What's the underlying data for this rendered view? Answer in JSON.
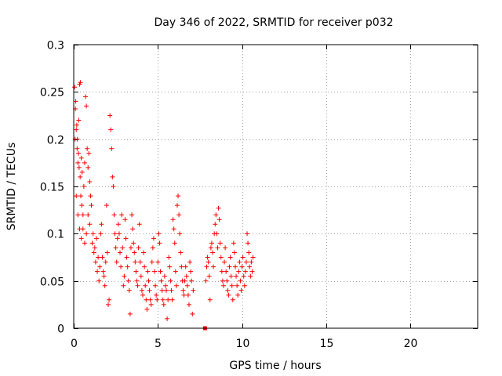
{
  "chart_data": {
    "type": "scatter",
    "title": "Day 346 of 2022, SRMTID for receiver p032",
    "xlabel": "GPS time / hours",
    "ylabel": "SRMTID / TECUs",
    "xlim": [
      0,
      24
    ],
    "ylim": [
      0,
      0.3
    ],
    "xticks": [
      0,
      5,
      10,
      15,
      20
    ],
    "xtick_labels": [
      "0",
      "5",
      "10",
      "15",
      "20"
    ],
    "yticks": [
      0,
      0.05,
      0.1,
      0.15,
      0.2,
      0.25,
      0.3
    ],
    "ytick_labels": [
      "0",
      "0.05",
      "0.1",
      "0.15",
      "0.2",
      "0.25",
      "0.3"
    ],
    "grid": true,
    "marker": "plus",
    "color": "#ff0000",
    "series": [
      {
        "name": "SRMTID",
        "points": [
          [
            0.05,
            0.255
          ],
          [
            0.1,
            0.232
          ],
          [
            0.15,
            0.21
          ],
          [
            0.2,
            0.19
          ],
          [
            0.25,
            0.175
          ],
          [
            0.3,
            0.22
          ],
          [
            0.35,
            0.258
          ],
          [
            0.4,
            0.26
          ],
          [
            0.45,
            0.18
          ],
          [
            0.5,
            0.165
          ],
          [
            0.08,
            0.2
          ],
          [
            0.12,
            0.24
          ],
          [
            0.18,
            0.215
          ],
          [
            0.22,
            0.2
          ],
          [
            0.28,
            0.185
          ],
          [
            0.32,
            0.17
          ],
          [
            0.38,
            0.16
          ],
          [
            0.42,
            0.14
          ],
          [
            0.48,
            0.13
          ],
          [
            0.55,
            0.12
          ],
          [
            0.6,
            0.15
          ],
          [
            0.65,
            0.175
          ],
          [
            0.7,
            0.245
          ],
          [
            0.75,
            0.235
          ],
          [
            0.8,
            0.19
          ],
          [
            0.85,
            0.17
          ],
          [
            0.9,
            0.185
          ],
          [
            0.95,
            0.155
          ],
          [
            1.0,
            0.14
          ],
          [
            1.05,
            0.13
          ],
          [
            0.15,
            0.14
          ],
          [
            0.25,
            0.12
          ],
          [
            0.35,
            0.105
          ],
          [
            0.45,
            0.095
          ],
          [
            0.55,
            0.105
          ],
          [
            0.65,
            0.09
          ],
          [
            0.75,
            0.1
          ],
          [
            0.85,
            0.12
          ],
          [
            0.95,
            0.11
          ],
          [
            1.1,
            0.09
          ],
          [
            1.15,
            0.1
          ],
          [
            1.2,
            0.08
          ],
          [
            1.25,
            0.085
          ],
          [
            1.3,
            0.07
          ],
          [
            1.35,
            0.095
          ],
          [
            1.4,
            0.06
          ],
          [
            1.45,
            0.075
          ],
          [
            1.5,
            0.05
          ],
          [
            1.55,
            0.065
          ],
          [
            1.6,
            0.1
          ],
          [
            1.65,
            0.11
          ],
          [
            1.7,
            0.075
          ],
          [
            1.75,
            0.06
          ],
          [
            1.8,
            0.055
          ],
          [
            1.85,
            0.045
          ],
          [
            1.9,
            0.07
          ],
          [
            1.95,
            0.13
          ],
          [
            2.0,
            0.08
          ],
          [
            2.05,
            0.025
          ],
          [
            2.1,
            0.03
          ],
          [
            2.15,
            0.225
          ],
          [
            2.2,
            0.21
          ],
          [
            2.25,
            0.19
          ],
          [
            2.3,
            0.16
          ],
          [
            2.35,
            0.15
          ],
          [
            2.4,
            0.12
          ],
          [
            2.45,
            0.1
          ],
          [
            2.5,
            0.085
          ],
          [
            2.55,
            0.07
          ],
          [
            2.6,
            0.095
          ],
          [
            2.65,
            0.11
          ],
          [
            2.7,
            0.1
          ],
          [
            2.75,
            0.08
          ],
          [
            2.8,
            0.065
          ],
          [
            2.85,
            0.12
          ],
          [
            2.9,
            0.085
          ],
          [
            2.95,
            0.045
          ],
          [
            3.0,
            0.055
          ],
          [
            3.05,
            0.115
          ],
          [
            3.1,
            0.095
          ],
          [
            3.15,
            0.075
          ],
          [
            3.2,
            0.065
          ],
          [
            3.25,
            0.05
          ],
          [
            3.3,
            0.04
          ],
          [
            3.35,
            0.015
          ],
          [
            3.4,
            0.085
          ],
          [
            3.45,
            0.12
          ],
          [
            3.5,
            0.105
          ],
          [
            3.55,
            0.09
          ],
          [
            3.6,
            0.08
          ],
          [
            3.65,
            0.07
          ],
          [
            3.7,
            0.06
          ],
          [
            3.75,
            0.05
          ],
          [
            3.8,
            0.045
          ],
          [
            3.85,
            0.085
          ],
          [
            3.9,
            0.11
          ],
          [
            3.95,
            0.07
          ],
          [
            4.0,
            0.055
          ],
          [
            4.05,
            0.04
          ],
          [
            4.1,
            0.035
          ],
          [
            4.15,
            0.08
          ],
          [
            4.2,
            0.065
          ],
          [
            4.25,
            0.045
          ],
          [
            4.3,
            0.03
          ],
          [
            4.35,
            0.02
          ],
          [
            4.4,
            0.06
          ],
          [
            4.45,
            0.05
          ],
          [
            4.5,
            0.04
          ],
          [
            4.55,
            0.03
          ],
          [
            4.6,
            0.025
          ],
          [
            4.65,
            0.07
          ],
          [
            4.7,
            0.085
          ],
          [
            4.75,
            0.095
          ],
          [
            4.8,
            0.06
          ],
          [
            4.85,
            0.045
          ],
          [
            4.9,
            0.035
          ],
          [
            4.95,
            0.03
          ],
          [
            5.0,
            0.07
          ],
          [
            5.05,
            0.1
          ],
          [
            5.1,
            0.09
          ],
          [
            5.15,
            0.06
          ],
          [
            5.2,
            0.05
          ],
          [
            5.25,
            0.04
          ],
          [
            5.3,
            0.03
          ],
          [
            5.35,
            0.025
          ],
          [
            5.4,
            0.055
          ],
          [
            5.45,
            0.045
          ],
          [
            5.5,
            0.04
          ],
          [
            5.55,
            0.01
          ],
          [
            5.6,
            0.03
          ],
          [
            5.65,
            0.075
          ],
          [
            5.7,
            0.065
          ],
          [
            5.75,
            0.05
          ],
          [
            5.8,
            0.04
          ],
          [
            5.85,
            0.03
          ],
          [
            5.9,
            0.115
          ],
          [
            5.95,
            0.105
          ],
          [
            6.0,
            0.09
          ],
          [
            6.05,
            0.06
          ],
          [
            6.1,
            0.045
          ],
          [
            6.15,
            0.13
          ],
          [
            6.2,
            0.14
          ],
          [
            6.25,
            0.12
          ],
          [
            6.3,
            0.1
          ],
          [
            6.35,
            0.08
          ],
          [
            6.4,
            0.065
          ],
          [
            6.45,
            0.05
          ],
          [
            6.5,
            0.04
          ],
          [
            6.55,
            0.035
          ],
          [
            6.6,
            0.05
          ],
          [
            6.65,
            0.065
          ],
          [
            6.7,
            0.055
          ],
          [
            6.75,
            0.045
          ],
          [
            6.8,
            0.035
          ],
          [
            6.85,
            0.025
          ],
          [
            6.9,
            0.07
          ],
          [
            6.95,
            0.06
          ],
          [
            7.0,
            0.05
          ],
          [
            7.05,
            0.015
          ],
          [
            7.1,
            0.04
          ],
          [
            7.8,
            0.0
          ],
          [
            7.85,
            0.05
          ],
          [
            7.9,
            0.065
          ],
          [
            7.95,
            0.075
          ],
          [
            8.0,
            0.07
          ],
          [
            8.05,
            0.055
          ],
          [
            8.1,
            0.03
          ],
          [
            8.15,
            0.085
          ],
          [
            8.2,
            0.09
          ],
          [
            8.25,
            0.08
          ],
          [
            8.3,
            0.065
          ],
          [
            8.35,
            0.1
          ],
          [
            8.4,
            0.11
          ],
          [
            8.45,
            0.12
          ],
          [
            8.5,
            0.1
          ],
          [
            8.55,
            0.085
          ],
          [
            8.6,
            0.127
          ],
          [
            8.65,
            0.115
          ],
          [
            8.7,
            0.09
          ],
          [
            8.75,
            0.075
          ],
          [
            8.8,
            0.06
          ],
          [
            8.85,
            0.05
          ],
          [
            8.9,
            0.045
          ],
          [
            8.95,
            0.07
          ],
          [
            9.0,
            0.085
          ],
          [
            9.05,
            0.06
          ],
          [
            9.1,
            0.05
          ],
          [
            9.15,
            0.04
          ],
          [
            9.2,
            0.035
          ],
          [
            9.25,
            0.065
          ],
          [
            9.3,
            0.075
          ],
          [
            9.35,
            0.055
          ],
          [
            9.4,
            0.045
          ],
          [
            9.45,
            0.03
          ],
          [
            9.5,
            0.09
          ],
          [
            9.55,
            0.08
          ],
          [
            9.6,
            0.065
          ],
          [
            9.65,
            0.055
          ],
          [
            9.7,
            0.045
          ],
          [
            9.75,
            0.035
          ],
          [
            9.8,
            0.06
          ],
          [
            9.85,
            0.07
          ],
          [
            9.9,
            0.05
          ],
          [
            9.95,
            0.04
          ],
          [
            10.0,
            0.065
          ],
          [
            10.05,
            0.075
          ],
          [
            10.1,
            0.055
          ],
          [
            10.15,
            0.045
          ],
          [
            10.2,
            0.06
          ],
          [
            10.25,
            0.07
          ],
          [
            10.3,
            0.1
          ],
          [
            10.35,
            0.09
          ],
          [
            10.4,
            0.08
          ],
          [
            10.45,
            0.065
          ],
          [
            10.5,
            0.055
          ],
          [
            10.55,
            0.07
          ],
          [
            10.6,
            0.06
          ],
          [
            10.65,
            0.075
          ]
        ]
      }
    ]
  }
}
